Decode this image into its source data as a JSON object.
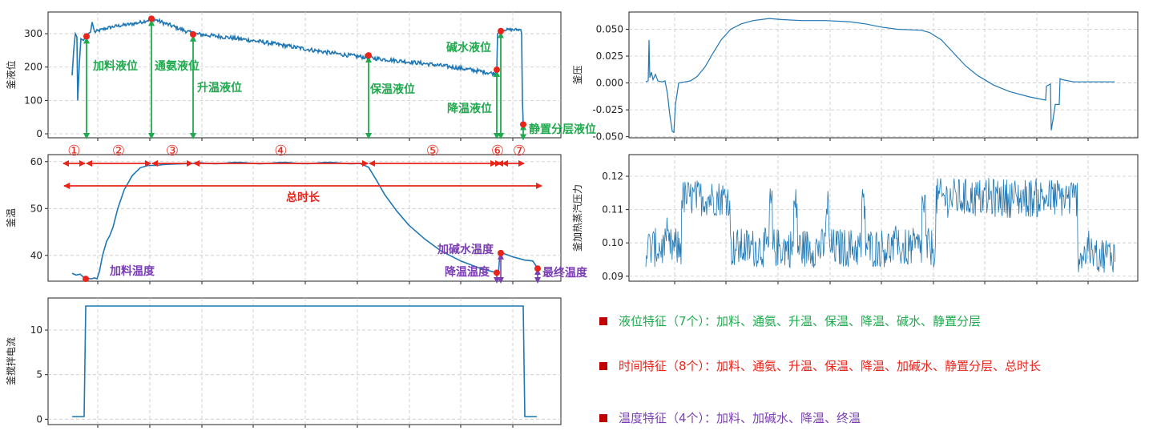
{
  "colors": {
    "line": "#1f77b4",
    "green": "#1faa4e",
    "red": "#e8241b",
    "purple": "#7b3fb4",
    "marker": "#e8241b",
    "square": "#c00000"
  },
  "chart_data": [
    {
      "id": "liquid_level",
      "type": "line",
      "ylabel": "釜液位",
      "ylim": [
        -12,
        365
      ],
      "yticks": [
        0,
        100,
        200,
        300
      ],
      "grid": true,
      "annotations": [
        {
          "label": "加料液位",
          "x": 108,
          "y": 292
        },
        {
          "label": "通氨液位",
          "x": 189,
          "y": 345
        },
        {
          "label": "升温液位",
          "x": 241,
          "y": 298
        },
        {
          "label": "保温液位",
          "x": 460,
          "y": 235
        },
        {
          "label": "降温液位",
          "x": 620,
          "y": 192
        },
        {
          "label": "碱水液位",
          "x": 625,
          "y": 308
        },
        {
          "label": "静置分层液位",
          "x": 653,
          "y": 28
        }
      ]
    },
    {
      "id": "temperature",
      "type": "line",
      "ylabel": "釜温",
      "ylim": [
        34.5,
        61.5
      ],
      "yticks": [
        40,
        50,
        60
      ],
      "grid": true,
      "phases": [
        "①",
        "②",
        "③",
        "④",
        "⑤",
        "⑥",
        "⑦"
      ],
      "total_label": "总时长",
      "annotations": [
        {
          "label": "加料温度",
          "x": 107,
          "y": 35.0
        },
        {
          "label": "加碱水温度",
          "x": 625,
          "y": 40.5
        },
        {
          "label": "降温温度",
          "x": 620,
          "y": 36.3
        },
        {
          "label": "最终温度",
          "x": 671,
          "y": 37.2
        }
      ]
    },
    {
      "id": "stirring_current",
      "type": "line",
      "ylabel": "釜搅拌电流",
      "ylim": [
        -0.6,
        13.6
      ],
      "yticks": [
        0,
        5,
        10
      ],
      "grid": true,
      "series": [
        {
          "x": [
            90,
            105,
            107,
            653,
            655,
            670
          ],
          "y": [
            0.3,
            0.3,
            12.7,
            12.7,
            0.3,
            0.3
          ]
        }
      ]
    },
    {
      "id": "pressure",
      "type": "line",
      "ylabel": "釜压",
      "ylim": [
        -0.051,
        0.066
      ],
      "yticks": [
        -0.05,
        -0.025,
        0.0,
        0.025,
        0.05
      ],
      "ytick_labels": [
        "-0.050",
        "-0.025",
        "0.000",
        "0.025",
        "0.050"
      ],
      "grid": true
    },
    {
      "id": "steam_pressure",
      "type": "line",
      "ylabel": "釜加热蒸汽压力",
      "ylim": [
        0.0885,
        0.1265
      ],
      "yticks": [
        0.09,
        0.1,
        0.11,
        0.12
      ],
      "ytick_labels": [
        "0.09",
        "0.10",
        "0.11",
        "0.12"
      ],
      "grid": true
    }
  ],
  "legend": [
    {
      "text": "液位特征（7个）：加料、通氨、升温、保温、降温、碱水、静置分层",
      "color": "#1faa4e"
    },
    {
      "text": " 时间特征（8个）：加料、通氨、升温、保温、降温、加碱水、静置分层、总时长",
      "color": "#e8241b"
    },
    {
      "text": "温度特征（4个）：加料、加碱水、降温、终温",
      "color": "#7b3fb4"
    }
  ]
}
